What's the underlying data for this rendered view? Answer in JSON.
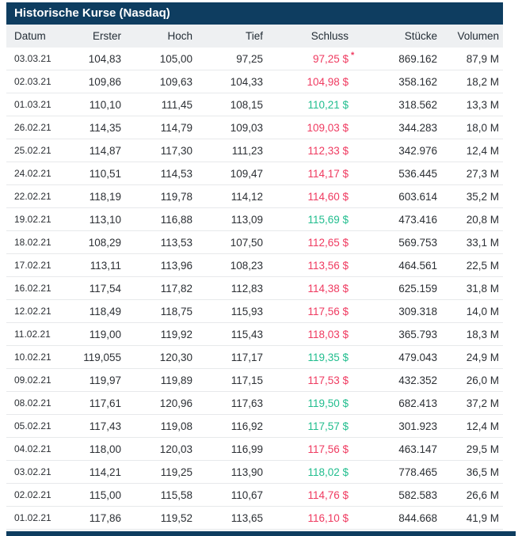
{
  "title": "Historische Kurse (Nasdaq)",
  "columns": [
    "Datum",
    "Erster",
    "Hoch",
    "Tief",
    "Schluss",
    "Stücke",
    "Volumen"
  ],
  "colors": {
    "header_navy": "#0e3d60",
    "column_header_bg": "#eef0f2",
    "positive_green": "#21bd8e",
    "negative_red": "#ef3a60"
  },
  "rows": [
    {
      "datum": "03.03.21",
      "erster": "104,83",
      "hoch": "105,00",
      "tief": "97,25",
      "schluss": "97,25 $",
      "star": "*",
      "trend": "down",
      "stuecke": "869.162",
      "volumen": "87,9 M"
    },
    {
      "datum": "02.03.21",
      "erster": "109,86",
      "hoch": "109,63",
      "tief": "104,33",
      "schluss": "104,98 $",
      "trend": "down",
      "stuecke": "358.162",
      "volumen": "18,2 M"
    },
    {
      "datum": "01.03.21",
      "erster": "110,10",
      "hoch": "111,45",
      "tief": "108,15",
      "schluss": "110,21 $",
      "trend": "up",
      "stuecke": "318.562",
      "volumen": "13,3 M"
    },
    {
      "datum": "26.02.21",
      "erster": "114,35",
      "hoch": "114,79",
      "tief": "109,03",
      "schluss": "109,03 $",
      "trend": "down",
      "stuecke": "344.283",
      "volumen": "18,0 M"
    },
    {
      "datum": "25.02.21",
      "erster": "114,87",
      "hoch": "117,30",
      "tief": "111,23",
      "schluss": "112,33 $",
      "trend": "down",
      "stuecke": "342.976",
      "volumen": "12,4 M"
    },
    {
      "datum": "24.02.21",
      "erster": "110,51",
      "hoch": "114,53",
      "tief": "109,47",
      "schluss": "114,17 $",
      "trend": "down",
      "stuecke": "536.445",
      "volumen": "27,3 M"
    },
    {
      "datum": "22.02.21",
      "erster": "118,19",
      "hoch": "119,78",
      "tief": "114,12",
      "schluss": "114,60 $",
      "trend": "down",
      "stuecke": "603.614",
      "volumen": "35,2 M"
    },
    {
      "datum": "19.02.21",
      "erster": "113,10",
      "hoch": "116,88",
      "tief": "113,09",
      "schluss": "115,69 $",
      "trend": "up",
      "stuecke": "473.416",
      "volumen": "20,8 M"
    },
    {
      "datum": "18.02.21",
      "erster": "108,29",
      "hoch": "113,53",
      "tief": "107,50",
      "schluss": "112,65 $",
      "trend": "down",
      "stuecke": "569.753",
      "volumen": "33,1 M"
    },
    {
      "datum": "17.02.21",
      "erster": "113,11",
      "hoch": "113,96",
      "tief": "108,23",
      "schluss": "113,56 $",
      "trend": "down",
      "stuecke": "464.561",
      "volumen": "22,5 M"
    },
    {
      "datum": "16.02.21",
      "erster": "117,54",
      "hoch": "117,82",
      "tief": "112,83",
      "schluss": "114,38 $",
      "trend": "down",
      "stuecke": "625.159",
      "volumen": "31,8 M"
    },
    {
      "datum": "12.02.21",
      "erster": "118,49",
      "hoch": "118,75",
      "tief": "115,93",
      "schluss": "117,56 $",
      "trend": "down",
      "stuecke": "309.318",
      "volumen": "14,0 M"
    },
    {
      "datum": "11.02.21",
      "erster": "119,00",
      "hoch": "119,92",
      "tief": "115,43",
      "schluss": "118,03 $",
      "trend": "down",
      "stuecke": "365.793",
      "volumen": "18,3 M"
    },
    {
      "datum": "10.02.21",
      "erster": "119,055",
      "hoch": "120,30",
      "tief": "117,17",
      "schluss": "119,35 $",
      "trend": "up",
      "stuecke": "479.043",
      "volumen": "24,9 M"
    },
    {
      "datum": "09.02.21",
      "erster": "119,97",
      "hoch": "119,89",
      "tief": "117,15",
      "schluss": "117,53 $",
      "trend": "down",
      "stuecke": "432.352",
      "volumen": "26,0 M"
    },
    {
      "datum": "08.02.21",
      "erster": "117,61",
      "hoch": "120,96",
      "tief": "117,63",
      "schluss": "119,50 $",
      "trend": "up",
      "stuecke": "682.413",
      "volumen": "37,2 M"
    },
    {
      "datum": "05.02.21",
      "erster": "117,43",
      "hoch": "119,08",
      "tief": "116,92",
      "schluss": "117,57 $",
      "trend": "up",
      "stuecke": "301.923",
      "volumen": "12,4 M"
    },
    {
      "datum": "04.02.21",
      "erster": "118,00",
      "hoch": "120,03",
      "tief": "116,99",
      "schluss": "117,56 $",
      "trend": "down",
      "stuecke": "463.147",
      "volumen": "29,5 M"
    },
    {
      "datum": "03.02.21",
      "erster": "114,21",
      "hoch": "119,25",
      "tief": "113,90",
      "schluss": "118,02 $",
      "trend": "up",
      "stuecke": "778.465",
      "volumen": "36,5 M"
    },
    {
      "datum": "02.02.21",
      "erster": "115,00",
      "hoch": "115,58",
      "tief": "110,67",
      "schluss": "114,76 $",
      "trend": "down",
      "stuecke": "582.583",
      "volumen": "26,6 M"
    },
    {
      "datum": "01.02.21",
      "erster": "117,86",
      "hoch": "119,52",
      "tief": "113,65",
      "schluss": "116,10 $",
      "trend": "down",
      "stuecke": "844.668",
      "volumen": "41,9 M"
    }
  ]
}
